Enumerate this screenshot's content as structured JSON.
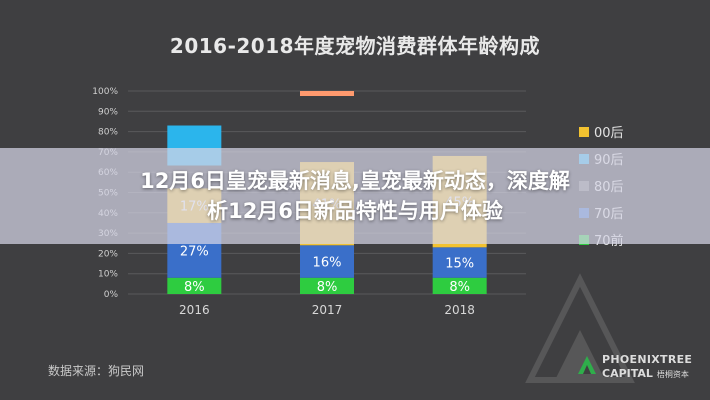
{
  "headline": {
    "line1": "12月6日皇宠最新消息,皇宠最新动态，深度解",
    "line2": "析12月6日新品特性与用户体验"
  },
  "source_note": "数据来源：狗民网",
  "logo": {
    "line1": "PHOENIXTREE",
    "line2": "CAPITAL",
    "line2_cn": "梧桐资本"
  },
  "chart_data": {
    "type": "bar",
    "stacked": true,
    "title": "2016-2018年度宠物消费群体年龄构成",
    "categories": [
      "2016",
      "2017",
      "2018"
    ],
    "yticks": [
      "0%",
      "10%",
      "20%",
      "30%",
      "40%",
      "50%",
      "60%",
      "70%",
      "80%",
      "90%",
      "100%"
    ],
    "ylim": [
      0,
      100
    ],
    "series": [
      {
        "name": "70前",
        "color": "#2ecc40",
        "values": [
          8,
          8,
          8
        ]
      },
      {
        "name": "70后",
        "color": "#3a6fc9",
        "values": [
          27,
          16,
          15
        ]
      },
      {
        "name": "80后",
        "color": "#7a7a7c",
        "values": [
          null,
          null,
          null
        ]
      },
      {
        "name": "90后",
        "color": "#2bb5ec",
        "values": [
          null,
          null,
          null
        ]
      },
      {
        "name": "00后",
        "color": "#f2c230",
        "values": [
          17,
          41,
          45
        ]
      }
    ],
    "extra_segment": {
      "category": "2017",
      "color": "#ff9a6e"
    },
    "legend_position": "right",
    "grid": true
  }
}
